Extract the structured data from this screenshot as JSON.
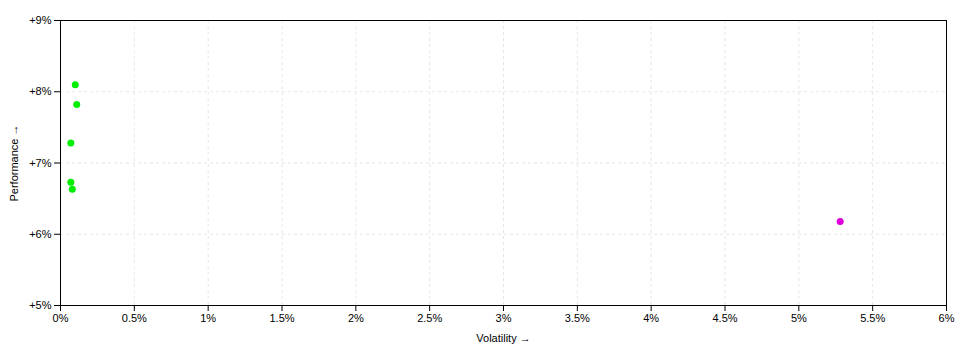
{
  "chart_data": {
    "type": "scatter",
    "xlabel": "Volatility",
    "ylabel": "Performance",
    "xlim": [
      0,
      6.0
    ],
    "ylim": [
      5.0,
      9.0
    ],
    "xticks": [
      {
        "value": 0,
        "label": "0%"
      },
      {
        "value": 0.5,
        "label": "0.5%"
      },
      {
        "value": 1.0,
        "label": "1%"
      },
      {
        "value": 1.5,
        "label": "1.5%"
      },
      {
        "value": 2.0,
        "label": "2%"
      },
      {
        "value": 2.5,
        "label": "2.5%"
      },
      {
        "value": 3.0,
        "label": "3%"
      },
      {
        "value": 3.5,
        "label": "3.5%"
      },
      {
        "value": 4.0,
        "label": "4%"
      },
      {
        "value": 4.5,
        "label": "4.5%"
      },
      {
        "value": 5.0,
        "label": "5%"
      },
      {
        "value": 5.5,
        "label": "5.5%"
      },
      {
        "value": 6.0,
        "label": "6%"
      }
    ],
    "yticks": [
      {
        "value": 5.0,
        "label": "+5%"
      },
      {
        "value": 6.0,
        "label": "+6%"
      },
      {
        "value": 7.0,
        "label": "+7%"
      },
      {
        "value": 8.0,
        "label": "+8%"
      },
      {
        "value": 9.0,
        "label": "+9%"
      }
    ],
    "grid": true,
    "series": [
      {
        "color": "#00ee00",
        "x": [
          0.1,
          0.11,
          0.07,
          0.07,
          0.08
        ],
        "values": [
          8.1,
          7.82,
          7.28,
          6.73,
          6.63
        ]
      },
      {
        "color": "#dd00dd",
        "x": [
          5.28
        ],
        "values": [
          6.18
        ]
      }
    ]
  }
}
